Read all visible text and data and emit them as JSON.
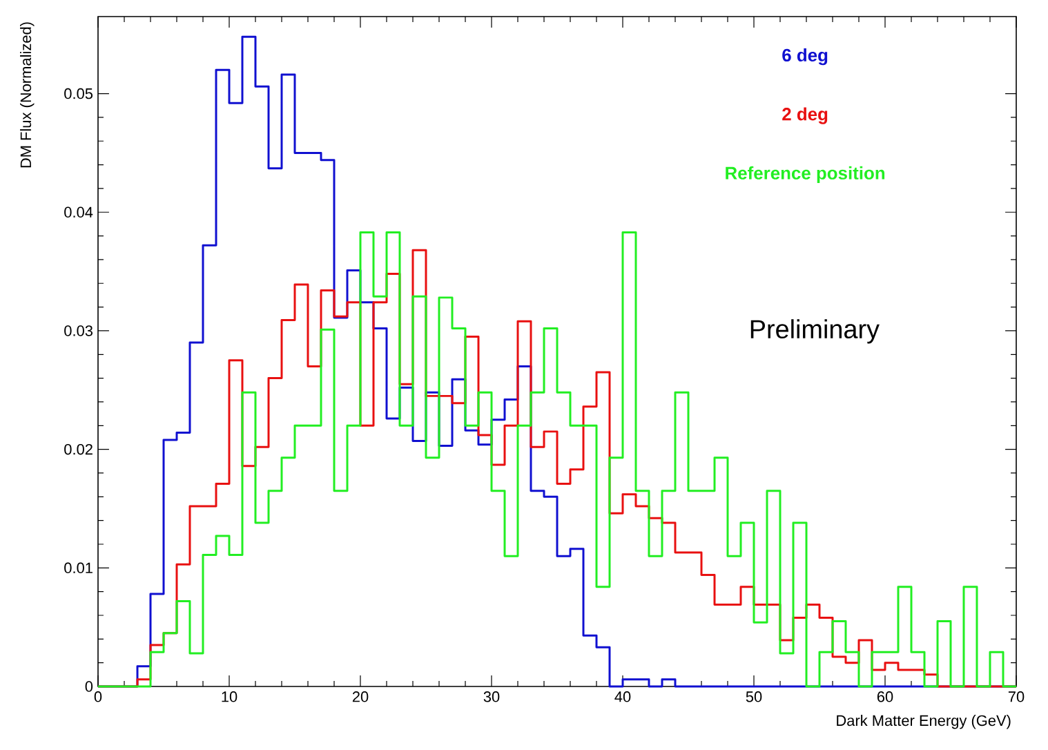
{
  "chart_data": {
    "type": "histogram",
    "xlabel": "Dark Matter Energy (GeV)",
    "ylabel": "DM Flux (Normalized)",
    "annotations": [
      "Preliminary"
    ],
    "xlim": [
      0,
      70
    ],
    "ylim": [
      0,
      0.0565
    ],
    "xticks": [
      0,
      10,
      20,
      30,
      40,
      50,
      60,
      70
    ],
    "yticks": [
      0,
      0.01,
      0.02,
      0.03,
      0.04,
      0.05
    ],
    "legend": "top right",
    "bins": [
      0,
      1,
      2,
      3,
      4,
      5,
      6,
      7,
      8,
      9,
      10,
      11,
      12,
      13,
      14,
      15,
      16,
      17,
      18,
      19,
      20,
      21,
      22,
      23,
      24,
      25,
      26,
      27,
      28,
      29,
      30,
      31,
      32,
      33,
      34,
      35,
      36,
      37,
      38,
      39,
      40,
      41,
      42,
      43,
      44,
      45,
      46,
      47,
      48,
      49,
      50,
      51,
      52,
      53,
      54,
      55,
      56,
      57,
      58,
      59,
      60,
      61,
      62,
      63,
      64,
      65,
      66,
      67,
      68,
      69,
      70
    ],
    "series": [
      {
        "name": "6 deg",
        "color": "#1010d0",
        "values": [
          0,
          0,
          0,
          0.0017,
          0.0078,
          0.0208,
          0.0214,
          0.029,
          0.0372,
          0.052,
          0.0492,
          0.0548,
          0.0506,
          0.0437,
          0.0516,
          0.045,
          0.045,
          0.0444,
          0.0311,
          0.0351,
          0.0324,
          0.0302,
          0.0226,
          0.0252,
          0.0207,
          0.0248,
          0.0203,
          0.0259,
          0.0216,
          0.0204,
          0.0225,
          0.0242,
          0.027,
          0.0165,
          0.016,
          0.011,
          0.0116,
          0.0043,
          0.0033,
          0,
          0.0006,
          0.0006,
          0,
          0.0006,
          0,
          0,
          0,
          0,
          0,
          0,
          0,
          0,
          0,
          0,
          0,
          0,
          0,
          0,
          0,
          0,
          0,
          0,
          0,
          0,
          0,
          0,
          0,
          0,
          0,
          0
        ]
      },
      {
        "name": "2 deg",
        "color": "#e81010",
        "values": [
          0,
          0,
          0,
          0.0006,
          0.0035,
          0.0045,
          0.0103,
          0.0152,
          0.0152,
          0.0171,
          0.0275,
          0.0186,
          0.0202,
          0.026,
          0.0309,
          0.0339,
          0.027,
          0.0334,
          0.0312,
          0.0324,
          0.022,
          0.0324,
          0.0348,
          0.0255,
          0.0368,
          0.0245,
          0.0245,
          0.0239,
          0.0295,
          0.0212,
          0.0187,
          0.022,
          0.0308,
          0.0202,
          0.0215,
          0.0171,
          0.0183,
          0.0236,
          0.0265,
          0.0146,
          0.0162,
          0.0152,
          0.0142,
          0.0138,
          0.0113,
          0.0113,
          0.0094,
          0.0069,
          0.0069,
          0.0084,
          0.0069,
          0.0069,
          0.0039,
          0.0058,
          0.0069,
          0.0058,
          0.0025,
          0.002,
          0.0039,
          0.0014,
          0.002,
          0.0014,
          0.0014,
          0.001,
          0,
          0,
          0,
          0,
          0,
          0
        ]
      },
      {
        "name": "Reference position",
        "color": "#22ee22",
        "values": [
          0,
          0,
          0,
          0,
          0.0029,
          0.0045,
          0.0072,
          0.0028,
          0.0111,
          0.0127,
          0.0111,
          0.0248,
          0.0138,
          0.0165,
          0.0193,
          0.022,
          0.022,
          0.0301,
          0.0165,
          0.022,
          0.0383,
          0.0329,
          0.0383,
          0.022,
          0.0329,
          0.0193,
          0.0328,
          0.0302,
          0.022,
          0.0248,
          0.0165,
          0.011,
          0.022,
          0.0248,
          0.0302,
          0.0248,
          0.022,
          0.022,
          0.0084,
          0.0193,
          0.0383,
          0.0165,
          0.011,
          0.0165,
          0.0248,
          0.0165,
          0.0165,
          0.0193,
          0.011,
          0.0138,
          0.0054,
          0.0165,
          0.0028,
          0.0138,
          0,
          0.0029,
          0.0055,
          0.0029,
          0,
          0.0029,
          0.0029,
          0.0084,
          0.0029,
          0,
          0.0055,
          0,
          0.0084,
          0,
          0.0029,
          0
        ]
      }
    ]
  }
}
